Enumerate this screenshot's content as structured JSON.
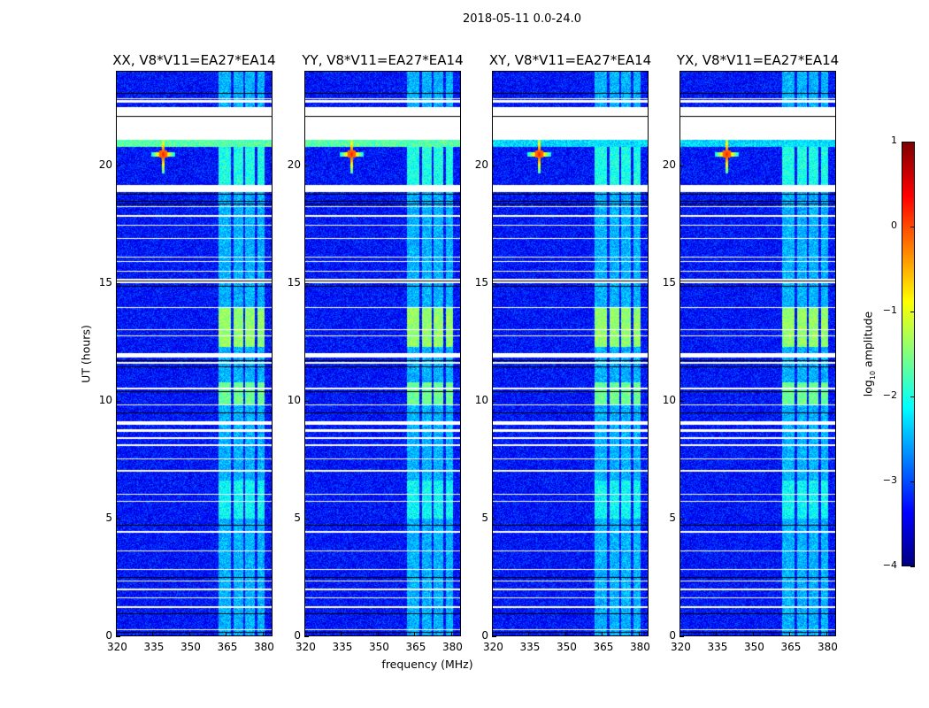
{
  "chart_data": {
    "type": "heatmap",
    "title": "2018-05-11 0.0-24.0",
    "xlabel": "frequency (MHz)",
    "ylabel": "UT (hours)",
    "xlim": [
      320,
      384
    ],
    "ylim": [
      0,
      24
    ],
    "xticks": [
      320,
      335,
      350,
      365,
      380
    ],
    "yticks": [
      0,
      5,
      10,
      15,
      20
    ],
    "panels": [
      {
        "title": "XX, V8*V11=EA27*EA14",
        "pol": "XX"
      },
      {
        "title": "YY, V8*V11=EA27*EA14",
        "pol": "YY"
      },
      {
        "title": "XY, V8*V11=EA27*EA14",
        "pol": "XY"
      },
      {
        "title": "YX, V8*V11=EA27*EA14",
        "pol": "YX"
      }
    ],
    "colorbar": {
      "label_prefix": "log",
      "label_sub": "10",
      "label_suffix": " amplitude",
      "range": [
        -4,
        1
      ],
      "ticks": [
        "1",
        "0",
        "−1",
        "−2",
        "−3",
        "−4"
      ],
      "tick_values": [
        1,
        0,
        -1,
        -2,
        -3,
        -4
      ],
      "colormap": "jet"
    },
    "background_level": -3.3,
    "flagged_hours": [
      [
        21.1,
        22.5
      ],
      [
        22.7,
        22.8
      ],
      [
        22.85,
        22.9
      ],
      [
        18.9,
        19.2
      ],
      [
        18.25,
        18.3
      ],
      [
        17.85,
        17.9
      ],
      [
        17.45,
        17.5
      ],
      [
        16.9,
        16.95
      ],
      [
        16.1,
        16.15
      ],
      [
        15.9,
        15.95
      ],
      [
        15.5,
        15.55
      ],
      [
        15.0,
        15.2
      ],
      [
        13.95,
        14.0
      ],
      [
        13.0,
        13.05
      ],
      [
        12.75,
        12.8
      ],
      [
        11.85,
        12.05
      ],
      [
        11.6,
        11.65
      ],
      [
        10.5,
        10.55
      ],
      [
        9.8,
        9.85
      ],
      [
        9.0,
        9.15
      ],
      [
        8.7,
        8.8
      ],
      [
        8.4,
        8.45
      ],
      [
        8.1,
        8.15
      ],
      [
        7.5,
        7.55
      ],
      [
        7.0,
        7.05
      ],
      [
        6.0,
        6.05
      ],
      [
        5.7,
        5.75
      ],
      [
        4.4,
        4.45
      ],
      [
        3.6,
        3.65
      ],
      [
        2.8,
        2.85
      ],
      [
        2.3,
        2.35
      ],
      [
        1.95,
        2.0
      ],
      [
        1.6,
        1.65
      ],
      [
        1.2,
        1.25
      ],
      [
        0.25,
        0.3
      ]
    ],
    "scan_boundaries_hours": [
      23.1,
      22.1,
      18.8,
      18.5,
      18.4,
      15.1,
      14.9,
      11.7,
      11.45,
      10.4,
      9.5,
      4.7,
      2.5,
      0.95,
      0.15
    ],
    "rfi_channels_mhz": [
      [
        362,
        367
      ],
      [
        368,
        372
      ],
      [
        373,
        377
      ],
      [
        378,
        381
      ]
    ],
    "rfi_bright_hours": [
      [
        12.3,
        14.0,
        -1.4
      ],
      [
        9.8,
        10.8,
        -1.6
      ],
      [
        19.0,
        20.8,
        -2.0
      ],
      [
        5.0,
        6.6,
        -2.1
      ],
      [
        0,
        24,
        -2.5
      ]
    ],
    "rfi_source": {
      "freq_mhz": 339,
      "hour": 20.5,
      "peak": 0.2
    }
  }
}
